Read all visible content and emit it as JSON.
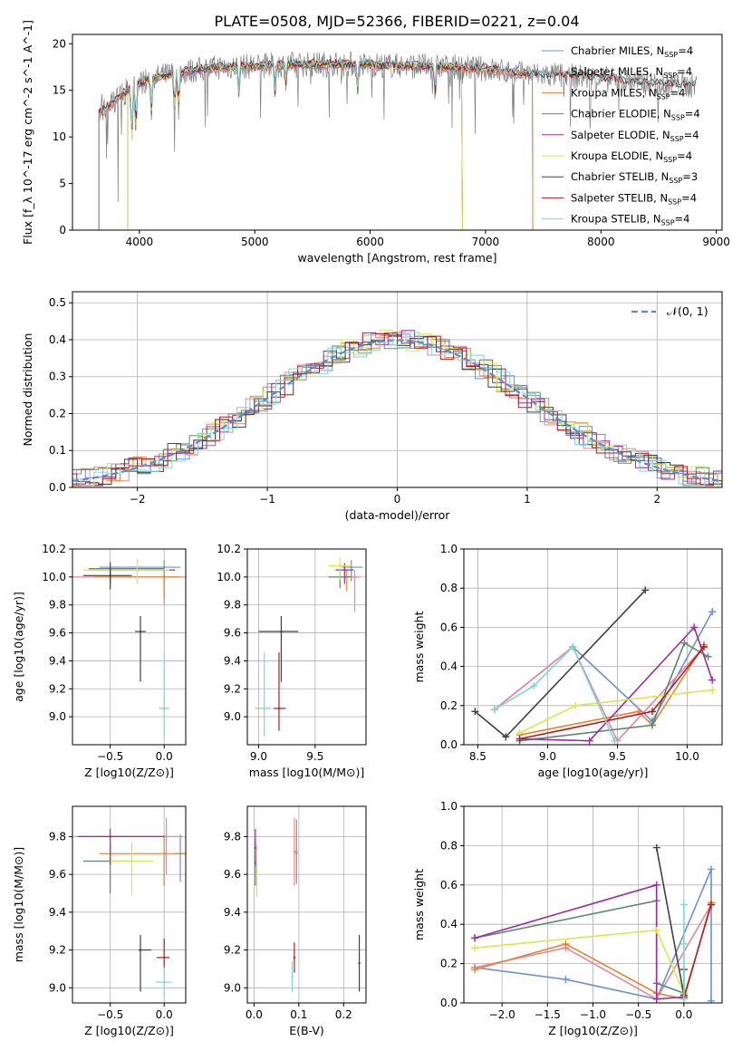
{
  "title": "PLATE=0508, MJD=52366, FIBERID=0221, z=0.04",
  "colors": {
    "Chabrier MILES": "#6a8fdc",
    "Salpeter MILES": "#e9849c",
    "Kroupa MILES": "#e8832f",
    "Chabrier ELODIE": "#5a8a6a",
    "Salpeter ELODIE": "#9b2aa8",
    "Kroupa ELODIE": "#d7ea4a",
    "Chabrier STELIB": "#404040",
    "Salpeter STELIB": "#b41e1e",
    "Kroupa STELIB": "#7fd6d6",
    "data": "#808080"
  },
  "chart_data": [
    {
      "type": "line",
      "id": "spectrum",
      "title": "PLATE=0508, MJD=52366, FIBERID=0221, z=0.04",
      "xlabel": "wavelength [Angstrom, rest frame]",
      "ylabel": "Flux [f_λ 10^-17 erg cm^-2 s^-1 A^-1]",
      "xlim": [
        3420,
        9050
      ],
      "ylim": [
        0,
        21
      ],
      "xticks": [
        4000,
        5000,
        6000,
        7000,
        8000,
        9000
      ],
      "yticks": [
        0,
        5,
        10,
        15,
        20
      ],
      "grid": false,
      "legend": "top-right",
      "legend_entries": [
        {
          "name": "Chabrier MILES",
          "nssp": "4"
        },
        {
          "name": "Salpeter MILES",
          "nssp": "4"
        },
        {
          "name": "Kroupa MILES",
          "nssp": "4"
        },
        {
          "name": "Chabrier ELODIE",
          "nssp": "4"
        },
        {
          "name": "Salpeter ELODIE",
          "nssp": "4"
        },
        {
          "name": "Kroupa ELODIE",
          "nssp": "4"
        },
        {
          "name": "Chabrier STELIB",
          "nssp": "3"
        },
        {
          "name": "Salpeter STELIB",
          "nssp": "4"
        },
        {
          "name": "Kroupa STELIB",
          "nssp": "4"
        }
      ],
      "continuum": {
        "x": [
          3650,
          3800,
          3950,
          4100,
          4300,
          4500,
          4700,
          5000,
          5200,
          5500,
          5800,
          6100,
          6400,
          6700,
          7000,
          7300,
          7600,
          7900,
          8200,
          8500,
          8800
        ],
        "y": [
          12.5,
          14.0,
          15.5,
          16.3,
          16.8,
          17.2,
          17.5,
          17.6,
          17.7,
          17.8,
          17.8,
          17.7,
          17.6,
          17.5,
          17.3,
          16.8,
          16.6,
          16.4,
          16.0,
          15.7,
          15.5
        ]
      },
      "model_cutoffs": {
        "MILES": [
          3650,
          7410
        ],
        "ELODIE": [
          3900,
          6800
        ],
        "STELIB": [
          3650,
          8830
        ]
      },
      "data_range": [
        3650,
        8830
      ]
    },
    {
      "type": "step",
      "id": "residuals",
      "xlabel": "(data-model)/error",
      "ylabel": "Normed distribution",
      "xlim": [
        -2.5,
        2.5
      ],
      "ylim": [
        0,
        0.53
      ],
      "xticks": [
        -2,
        -1,
        0,
        1,
        2
      ],
      "yticks": [
        0.0,
        0.1,
        0.2,
        0.3,
        0.4,
        0.5
      ],
      "grid": true,
      "legend": "top-right",
      "reference_curve": {
        "name": "N(0,1)",
        "mu": 0,
        "sigma": 1
      },
      "bin_width": 0.1,
      "histogram_approx": "normal with scatter ±0.03 per bin for each of 9 fits"
    },
    {
      "type": "scatter",
      "id": "Z-age",
      "xlabel": "Z [log10(Z/Z⊙)]",
      "ylabel": "age  [log10(age/yr)]",
      "xlim": [
        -0.85,
        0.2
      ],
      "ylim": [
        8.8,
        10.2
      ],
      "xticks": [
        -0.5,
        0.0
      ],
      "yticks": [
        9.0,
        9.2,
        9.4,
        9.6,
        9.8,
        10.0,
        10.2
      ],
      "grid": true,
      "points": [
        {
          "series": "Chabrier MILES",
          "x": 0.0,
          "y": 10.07,
          "xerr": [
            0.6,
            0.15
          ],
          "yerr": [
            0.15,
            0.05
          ]
        },
        {
          "series": "Salpeter MILES",
          "x": 0.0,
          "y": 10.0,
          "xerr": [
            0.85,
            0.2
          ],
          "yerr": [
            0.2,
            0.05
          ]
        },
        {
          "series": "Kroupa MILES",
          "x": 0.0,
          "y": 10.0,
          "xerr": [
            0.65,
            0.15
          ],
          "yerr": [
            0.15,
            0.05
          ]
        },
        {
          "series": "Chabrier ELODIE",
          "x": -0.5,
          "y": 10.06,
          "xerr": [
            0.2,
            0.5
          ],
          "yerr": [
            0.1,
            0.05
          ]
        },
        {
          "series": "Salpeter ELODIE",
          "x": -0.5,
          "y": 10.05,
          "xerr": [
            0.2,
            0.6
          ],
          "yerr": [
            0.1,
            0.05
          ]
        },
        {
          "series": "Kroupa ELODIE",
          "x": -0.25,
          "y": 10.05,
          "xerr": [
            0.5,
            0.3
          ],
          "yerr": [
            0.1,
            0.08
          ]
        },
        {
          "series": "Chabrier STELIB",
          "x": -0.5,
          "y": 10.01,
          "xerr": [
            0.25,
            0.2
          ],
          "yerr": [
            0.1,
            0.05
          ]
        },
        {
          "series": "Chabrier STELIB",
          "x": -0.22,
          "y": 9.61,
          "xerr": [
            0.05,
            0.05
          ],
          "yerr": [
            0.36,
            0.11
          ]
        },
        {
          "series": "Kroupa STELIB",
          "x": 0.0,
          "y": 9.06,
          "xerr": [
            0.05,
            0.05
          ],
          "yerr": [
            0.2,
            0.4
          ]
        }
      ]
    },
    {
      "type": "scatter",
      "id": "mass-age",
      "xlabel": "mass [log10(M/M⊙)]",
      "ylabel": "",
      "xlim": [
        8.9,
        9.95
      ],
      "ylim": [
        8.8,
        10.2
      ],
      "xticks": [
        9.0,
        9.5
      ],
      "yticks": [
        9.0,
        9.2,
        9.4,
        9.6,
        9.8,
        10.0,
        10.2
      ],
      "grid": true,
      "points": [
        {
          "series": "Chabrier MILES",
          "x": 9.82,
          "y": 10.07,
          "xerr": [
            0.08,
            0.1
          ],
          "yerr": [
            0.1,
            0.05
          ]
        },
        {
          "series": "Salpeter MILES",
          "x": 9.85,
          "y": 10.0,
          "xerr": [
            0.1,
            0.05
          ],
          "yerr": [
            0.25,
            0.05
          ]
        },
        {
          "series": "Kroupa MILES",
          "x": 9.78,
          "y": 10.0,
          "xerr": [
            0.08,
            0.05
          ],
          "yerr": [
            0.1,
            0.05
          ]
        },
        {
          "series": "Chabrier ELODIE",
          "x": 9.72,
          "y": 10.0,
          "xerr": [
            0.1,
            0.1
          ],
          "yerr": [
            0.08,
            0.05
          ]
        },
        {
          "series": "Salpeter ELODIE",
          "x": 9.76,
          "y": 10.05,
          "xerr": [
            0.08,
            0.08
          ],
          "yerr": [
            0.1,
            0.05
          ]
        },
        {
          "series": "Kroupa ELODIE",
          "x": 9.72,
          "y": 10.08,
          "xerr": [
            0.1,
            0.1
          ],
          "yerr": [
            0.1,
            0.06
          ]
        },
        {
          "series": "Chabrier STELIB",
          "x": 9.2,
          "y": 9.61,
          "xerr": [
            0.2,
            0.15
          ],
          "yerr": [
            0.36,
            0.11
          ]
        },
        {
          "series": "Salpeter STELIB",
          "x": 9.18,
          "y": 9.06,
          "xerr": [
            0.05,
            0.06
          ],
          "yerr": [
            0.16,
            0.4
          ]
        },
        {
          "series": "Kroupa STELIB",
          "x": 9.05,
          "y": 9.06,
          "xerr": [
            0.08,
            0.06
          ],
          "yerr": [
            0.2,
            0.4
          ]
        }
      ]
    },
    {
      "type": "line",
      "id": "age-massweight",
      "xlabel": "age  [log10(age/yr)]",
      "ylabel": "mass weight",
      "xlim": [
        8.4,
        10.25
      ],
      "ylim": [
        0,
        1.0
      ],
      "xticks": [
        8.5,
        9.0,
        9.5,
        10.0
      ],
      "yticks": [
        0.0,
        0.2,
        0.4,
        0.6,
        0.8,
        1.0
      ],
      "grid": true,
      "series": [
        {
          "name": "Chabrier MILES",
          "x": [
            8.62,
            9.18,
            9.75,
            10.18
          ],
          "y": [
            0.18,
            0.5,
            0.12,
            0.68
          ]
        },
        {
          "name": "Salpeter MILES",
          "x": [
            8.62,
            9.18,
            9.5,
            10.12
          ],
          "y": [
            0.18,
            0.5,
            0.02,
            0.5
          ]
        },
        {
          "name": "Kroupa MILES",
          "x": [
            8.8,
            9.65,
            9.75,
            10.12
          ],
          "y": [
            0.05,
            0.17,
            0.1,
            0.51
          ]
        },
        {
          "name": "Chabrier ELODIE",
          "x": [
            8.8,
            9.75,
            9.98,
            10.15
          ],
          "y": [
            0.02,
            0.1,
            0.52,
            0.45
          ]
        },
        {
          "name": "Salpeter ELODIE",
          "x": [
            8.8,
            9.3,
            10.05,
            10.18
          ],
          "y": [
            0.03,
            0.02,
            0.6,
            0.33
          ]
        },
        {
          "name": "Kroupa ELODIE",
          "x": [
            8.8,
            9.2,
            10.18
          ],
          "y": [
            0.06,
            0.2,
            0.28
          ]
        },
        {
          "name": "Chabrier STELIB",
          "x": [
            8.48,
            8.7,
            9.7
          ],
          "y": [
            0.17,
            0.04,
            0.79
          ]
        },
        {
          "name": "Salpeter STELIB",
          "x": [
            8.8,
            9.75,
            10.12
          ],
          "y": [
            0.03,
            0.17,
            0.5
          ]
        },
        {
          "name": "Kroupa STELIB",
          "x": [
            8.62,
            8.9,
            9.18,
            9.48
          ],
          "y": [
            0.18,
            0.3,
            0.5,
            0.02
          ]
        }
      ]
    },
    {
      "type": "scatter",
      "id": "Z-mass",
      "xlabel": "Z [log10(Z/Z⊙)]",
      "ylabel": "mass [log10(M/M⊙)]",
      "xlim": [
        -0.85,
        0.2
      ],
      "ylim": [
        8.92,
        9.96
      ],
      "xticks": [
        -0.5,
        0.0
      ],
      "yticks": [
        9.0,
        9.2,
        9.4,
        9.6,
        9.8
      ],
      "grid": true,
      "points": [
        {
          "series": "Chabrier MILES",
          "x": 0.15,
          "y": 9.71,
          "xerr": [
            0.05,
            0.05
          ],
          "yerr": [
            0.15,
            0.1
          ]
        },
        {
          "series": "Salpeter MILES",
          "x": 0.02,
          "y": 9.8,
          "xerr": [
            0.85,
            0.15
          ],
          "yerr": [
            0.2,
            0.1
          ]
        },
        {
          "series": "Kroupa MILES",
          "x": 0.0,
          "y": 9.71,
          "xerr": [
            0.6,
            0.2
          ],
          "yerr": [
            0.17,
            0.1
          ]
        },
        {
          "series": "Chabrier ELODIE",
          "x": -0.5,
          "y": 9.67,
          "xerr": [
            0.25,
            0.2
          ],
          "yerr": [
            0.17,
            0.1
          ]
        },
        {
          "series": "Salpeter ELODIE",
          "x": -0.5,
          "y": 9.8,
          "xerr": [
            0.3,
            0.5
          ],
          "yerr": [
            0.15,
            0.04
          ]
        },
        {
          "series": "Kroupa ELODIE",
          "x": -0.3,
          "y": 9.67,
          "xerr": [
            0.2,
            0.2
          ],
          "yerr": [
            0.18,
            0.1
          ]
        },
        {
          "series": "Chabrier STELIB",
          "x": -0.22,
          "y": 9.2,
          "xerr": [
            0.02,
            0.1
          ],
          "yerr": [
            0.22,
            0.08
          ]
        },
        {
          "series": "Salpeter STELIB",
          "x": 0.0,
          "y": 9.16,
          "xerr": [
            0.07,
            0.05
          ],
          "yerr": [
            0.06,
            0.1
          ]
        },
        {
          "series": "Kroupa STELIB",
          "x": 0.0,
          "y": 9.03,
          "xerr": [
            0.08,
            0.07
          ],
          "yerr": [
            0.08,
            0.08
          ]
        }
      ]
    },
    {
      "type": "scatter",
      "id": "EBV-mass",
      "xlabel": "E(B-V)",
      "ylabel": "",
      "xlim": [
        -0.015,
        0.25
      ],
      "ylim": [
        8.92,
        9.96
      ],
      "xticks": [
        0.0,
        0.1,
        0.2
      ],
      "yticks": [
        9.0,
        9.2,
        9.4,
        9.6,
        9.8
      ],
      "grid": true,
      "points": [
        {
          "series": "Chabrier MILES",
          "x": 0.095,
          "y": 9.71,
          "xerr": [
            0,
            0
          ],
          "yerr": [
            0.15,
            0.15
          ]
        },
        {
          "series": "Salpeter MILES",
          "x": 0.09,
          "y": 9.72,
          "xerr": [
            0,
            0
          ],
          "yerr": [
            0.18,
            0.18
          ]
        },
        {
          "series": "Kroupa MILES",
          "x": 0.095,
          "y": 9.72,
          "xerr": [
            0,
            0
          ],
          "yerr": [
            0.17,
            0.17
          ]
        },
        {
          "series": "Chabrier ELODIE",
          "x": 0.003,
          "y": 9.66,
          "xerr": [
            0,
            0
          ],
          "yerr": [
            0.12,
            0.12
          ]
        },
        {
          "series": "Salpeter ELODIE",
          "x": 0.003,
          "y": 9.74,
          "xerr": [
            0,
            0
          ],
          "yerr": [
            0.1,
            0.1
          ]
        },
        {
          "series": "Kroupa ELODIE",
          "x": 0.006,
          "y": 9.62,
          "xerr": [
            0,
            0
          ],
          "yerr": [
            0.14,
            0.14
          ]
        },
        {
          "series": "Chabrier STELIB",
          "x": 0.235,
          "y": 9.13,
          "xerr": [
            0,
            0
          ],
          "yerr": [
            0.15,
            0.15
          ]
        },
        {
          "series": "Salpeter STELIB",
          "x": 0.09,
          "y": 9.16,
          "xerr": [
            0,
            0
          ],
          "yerr": [
            0.08,
            0.08
          ]
        },
        {
          "series": "Kroupa STELIB",
          "x": 0.085,
          "y": 9.06,
          "xerr": [
            0,
            0
          ],
          "yerr": [
            0.08,
            0.08
          ]
        }
      ]
    },
    {
      "type": "line",
      "id": "Z-massweight",
      "xlabel": "Z [log10(Z/Z⊙)]",
      "ylabel": "mass weight",
      "xlim": [
        -2.42,
        0.42
      ],
      "ylim": [
        0,
        1.0
      ],
      "xticks": [
        -2.0,
        -1.5,
        -1.0,
        -0.5,
        0.0
      ],
      "yticks": [
        0.0,
        0.2,
        0.4,
        0.6,
        0.8,
        1.0
      ],
      "grid": true,
      "series": [
        {
          "name": "Chabrier MILES",
          "x": [
            -2.3,
            -1.3,
            -0.3,
            0.3,
            0.3
          ],
          "y": [
            0.18,
            0.12,
            0.02,
            0.68,
            0.01
          ]
        },
        {
          "name": "Salpeter MILES",
          "x": [
            -2.3,
            -1.3,
            -0.3,
            0.3
          ],
          "y": [
            0.18,
            0.28,
            0.02,
            0.5
          ]
        },
        {
          "name": "Kroupa MILES",
          "x": [
            -2.3,
            -1.3,
            -0.3,
            0.0,
            0.3
          ],
          "y": [
            0.17,
            0.3,
            0.05,
            0.02,
            0.51
          ]
        },
        {
          "name": "Chabrier ELODIE",
          "x": [
            -2.3,
            -0.3,
            -0.3,
            0.0
          ],
          "y": [
            0.33,
            0.52,
            0.1,
            0.05
          ]
        },
        {
          "name": "Salpeter ELODIE",
          "x": [
            -2.3,
            -0.3,
            -0.3,
            0.0
          ],
          "y": [
            0.33,
            0.6,
            0.02,
            0.03
          ]
        },
        {
          "name": "Kroupa ELODIE",
          "x": [
            -2.3,
            -0.3,
            0.0
          ],
          "y": [
            0.28,
            0.37,
            0.05
          ]
        },
        {
          "name": "Chabrier STELIB",
          "x": [
            -0.3,
            0.0,
            0.0
          ],
          "y": [
            0.79,
            0.04,
            0.17
          ]
        },
        {
          "name": "Salpeter STELIB",
          "x": [
            0.0,
            0.3
          ],
          "y": [
            0.03,
            0.5
          ]
        },
        {
          "name": "Kroupa STELIB",
          "x": [
            0.0,
            0.0,
            0.0
          ],
          "y": [
            0.5,
            0.3,
            0.02
          ]
        }
      ]
    }
  ]
}
